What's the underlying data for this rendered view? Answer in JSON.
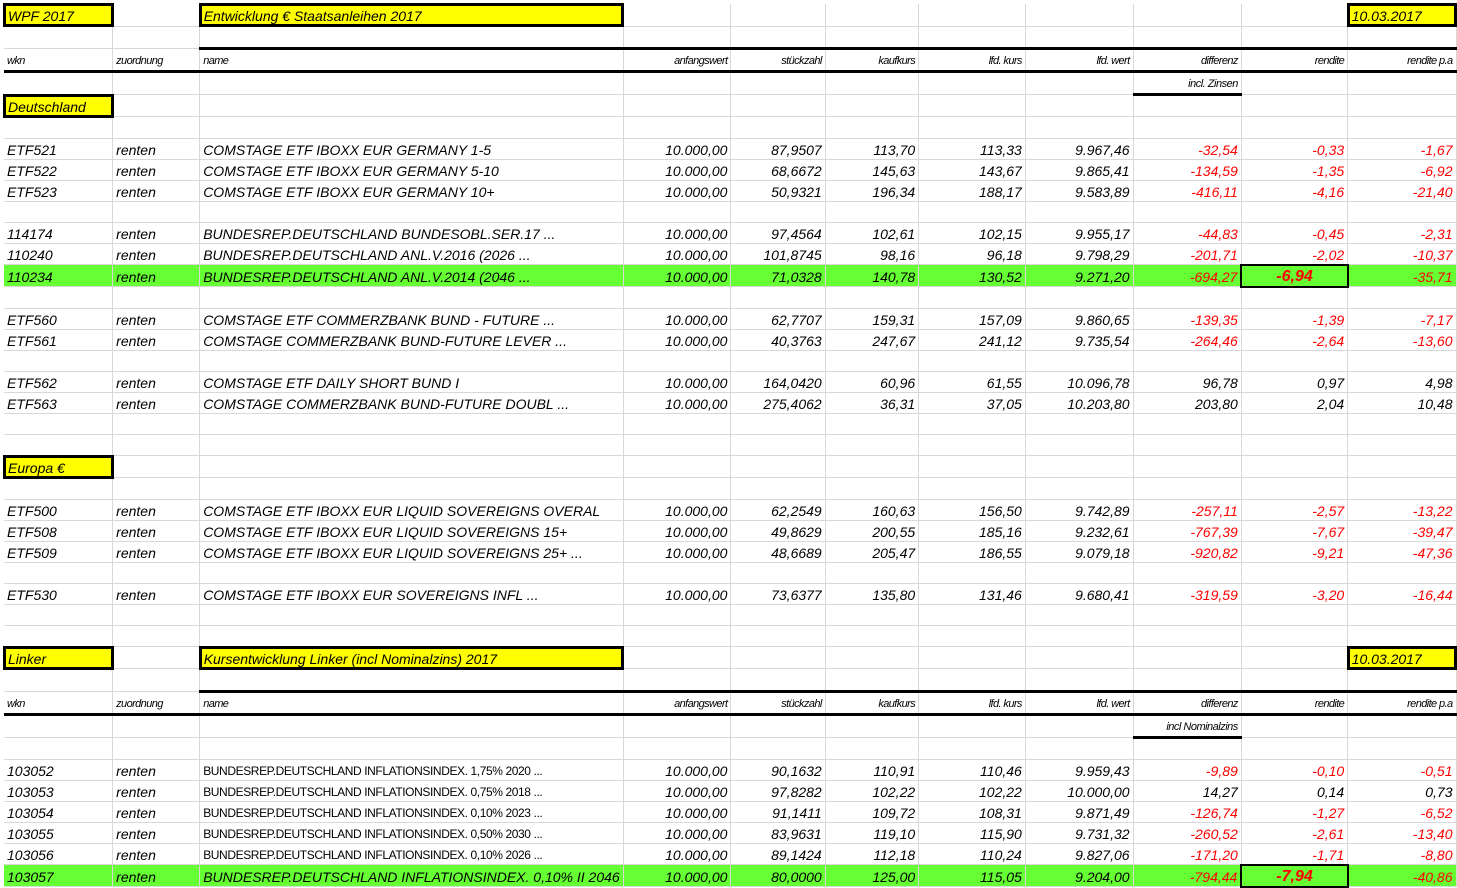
{
  "colors": {
    "highlight": "#66ff33",
    "label": "#ffff00",
    "negative": "#ff0000"
  },
  "title": {
    "left": "WPF 2017",
    "main": "Entwicklung € Staatsanleihen 2017",
    "date": "10.03.2017"
  },
  "headers": [
    "wkn",
    "zuordnung",
    "name",
    "anfangswert",
    "stückzahl",
    "kaufkurs",
    "lfd. kurs",
    "lfd. wert",
    "differenz",
    "rendite",
    "rendite p.a"
  ],
  "incl1": "incl. Zinsen",
  "sections": [
    {
      "label": "Deutschland",
      "groups": [
        [
          [
            "ETF521",
            "renten",
            "COMSTAGE ETF IBOXX EUR GERMANY 1-5",
            "10.000,00",
            "87,9507",
            "113,70",
            "113,33",
            "9.967,46",
            "-32,54",
            "-0,33",
            "-1,67"
          ],
          [
            "ETF522",
            "renten",
            "COMSTAGE ETF IBOXX EUR GERMANY 5-10",
            "10.000,00",
            "68,6672",
            "145,63",
            "143,67",
            "9.865,41",
            "-134,59",
            "-1,35",
            "-6,92"
          ],
          [
            "ETF523",
            "renten",
            "COMSTAGE ETF IBOXX EUR GERMANY 10+",
            "10.000,00",
            "50,9321",
            "196,34",
            "188,17",
            "9.583,89",
            "-416,11",
            "-4,16",
            "-21,40"
          ]
        ],
        [
          [
            "114174",
            "renten",
            "BUNDESREP.DEUTSCHLAND BUNDESOBL.SER.17 ...",
            "10.000,00",
            "97,4564",
            "102,61",
            "102,15",
            "9.955,17",
            "-44,83",
            "-0,45",
            "-2,31"
          ],
          [
            "110240",
            "renten",
            "BUNDESREP.DEUTSCHLAND ANL.V.2016 (2026 ...",
            "10.000,00",
            "101,8745",
            "98,16",
            "96,18",
            "9.798,29",
            "-201,71",
            "-2,02",
            "-10,37"
          ],
          [
            "110234",
            "renten",
            "BUNDESREP.DEUTSCHLAND ANL.V.2014 (2046 ...",
            "10.000,00",
            "71,0328",
            "140,78",
            "130,52",
            "9.271,20",
            "-694,27",
            "-6,94",
            "-35,71"
          ]
        ],
        [
          [
            "ETF560",
            "renten",
            "COMSTAGE ETF COMMERZBANK BUND - FUTURE ...",
            "10.000,00",
            "62,7707",
            "159,31",
            "157,09",
            "9.860,65",
            "-139,35",
            "-1,39",
            "-7,17"
          ],
          [
            "ETF561",
            "renten",
            "COMSTAGE COMMERZBANK BUND-FUTURE LEVER ...",
            "10.000,00",
            "40,3763",
            "247,67",
            "241,12",
            "9.735,54",
            "-264,46",
            "-2,64",
            "-13,60"
          ]
        ],
        [
          [
            "ETF562",
            "renten",
            "COMSTAGE ETF DAILY SHORT BUND I",
            "10.000,00",
            "164,0420",
            "60,96",
            "61,55",
            "10.096,78",
            "96,78",
            "0,97",
            "4,98"
          ],
          [
            "ETF563",
            "renten",
            "COMSTAGE COMMERZBANK BUND-FUTURE DOUBL ...",
            "10.000,00",
            "275,4062",
            "36,31",
            "37,05",
            "10.203,80",
            "203,80",
            "2,04",
            "10,48"
          ]
        ]
      ]
    },
    {
      "label": "Europa €",
      "groups": [
        [
          [
            "ETF500",
            "renten",
            "COMSTAGE ETF IBOXX EUR LIQUID SOVEREIGNS OVERAL",
            "10.000,00",
            "62,2549",
            "160,63",
            "156,50",
            "9.742,89",
            "-257,11",
            "-2,57",
            "-13,22"
          ],
          [
            "ETF508",
            "renten",
            "COMSTAGE ETF IBOXX EUR LIQUID SOVEREIGNS 15+",
            "10.000,00",
            "49,8629",
            "200,55",
            "185,16",
            "9.232,61",
            "-767,39",
            "-7,67",
            "-39,47"
          ],
          [
            "ETF509",
            "renten",
            "COMSTAGE ETF IBOXX EUR LIQUID SOVEREIGNS 25+ ...",
            "10.000,00",
            "48,6689",
            "205,47",
            "186,55",
            "9.079,18",
            "-920,82",
            "-9,21",
            "-47,36"
          ]
        ],
        [
          [
            "ETF530",
            "renten",
            "COMSTAGE ETF IBOXX EUR SOVEREIGNS INFL ...",
            "10.000,00",
            "73,6377",
            "135,80",
            "131,46",
            "9.680,41",
            "-319,59",
            "-3,20",
            "-16,44"
          ]
        ]
      ]
    }
  ],
  "linker": {
    "label": "Linker",
    "title": "Kursentwicklung Linker (incl Nominalzins) 2017",
    "date": "10.03.2017",
    "incl": "incl Nominalzins",
    "rows": [
      [
        "103052",
        "renten",
        "BUNDESREP.DEUTSCHLAND INFLATIONSINDEX. 1,75% 2020 ...",
        "10.000,00",
        "90,1632",
        "110,91",
        "110,46",
        "9.959,43",
        "-9,89",
        "-0,10",
        "-0,51"
      ],
      [
        "103053",
        "renten",
        "BUNDESREP.DEUTSCHLAND INFLATIONSINDEX. 0,75% 2018 ...",
        "10.000,00",
        "97,8282",
        "102,22",
        "102,22",
        "10.000,00",
        "14,27",
        "0,14",
        "0,73"
      ],
      [
        "103054",
        "renten",
        "BUNDESREP.DEUTSCHLAND INFLATIONSINDEX. 0,10% 2023 ...",
        "10.000,00",
        "91,1411",
        "109,72",
        "108,31",
        "9.871,49",
        "-126,74",
        "-1,27",
        "-6,52"
      ],
      [
        "103055",
        "renten",
        "BUNDESREP.DEUTSCHLAND INFLATIONSINDEX. 0,50% 2030 ...",
        "10.000,00",
        "83,9631",
        "119,10",
        "115,90",
        "9.731,32",
        "-260,52",
        "-2,61",
        "-13,40"
      ],
      [
        "103056",
        "renten",
        "BUNDESREP.DEUTSCHLAND INFLATIONSINDEX. 0,10% 2026 ...",
        "10.000,00",
        "89,1424",
        "112,18",
        "110,24",
        "9.827,06",
        "-171,20",
        "-1,71",
        "-8,80"
      ],
      [
        "103057",
        "renten",
        "BUNDESREP.DEUTSCHLAND INFLATIONSINDEX. 0,10% II 2046",
        "10.000,00",
        "80,0000",
        "125,00",
        "115,05",
        "9.204,00",
        "-794,44",
        "-7,94",
        "-40,86"
      ]
    ]
  }
}
